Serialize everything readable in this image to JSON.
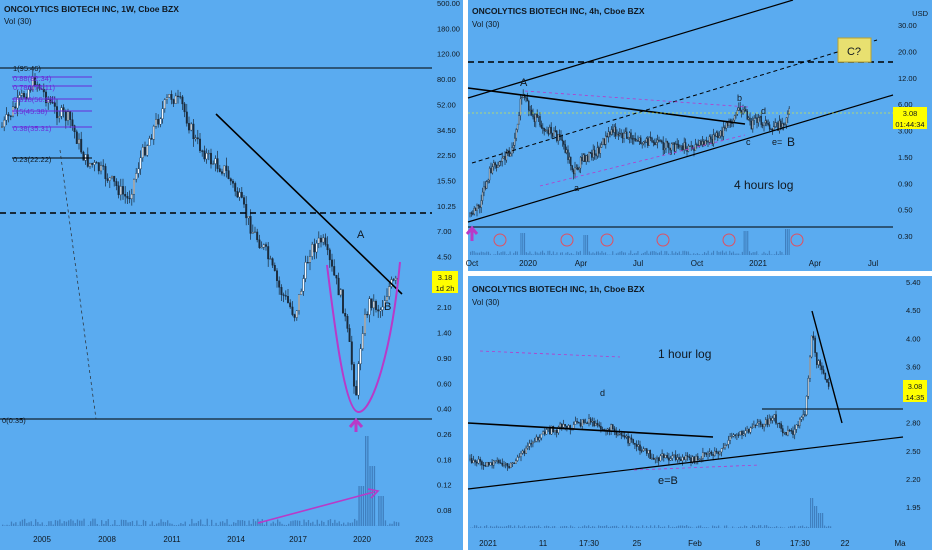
{
  "colors": {
    "panel_bg": "#5aabf0",
    "candle": "#1a2a3a",
    "trendline": "#000000",
    "magenta": "#b83ac8",
    "price_badge": "#ffff00",
    "divider": "#ffffff",
    "text": "#101820",
    "fib": "#6a2bd8"
  },
  "charts": [
    {
      "header": "ONCOLYTICS BIOTECH INC, 1W, Cboe BZX",
      "vol_label": "Vol (30)",
      "y_ticks": [
        "500.00",
        "180.00",
        "120.00",
        "80.00",
        "52.00",
        "34.50",
        "22.50",
        "15.50",
        "10.25",
        "7.00",
        "4.50",
        "3.18",
        "2.10",
        "1.40",
        "0.90",
        "0.60",
        "0.40",
        "0.26",
        "0.18",
        "0.12",
        "0.08"
      ],
      "x_ticks": [
        "2005",
        "2008",
        "2011",
        "2014",
        "2017",
        "2020",
        "2023"
      ],
      "price_badge": "3.18",
      "countdown_badge": "1d 2h",
      "fib_labels": [
        "1(95.46)",
        "0.88(82.34)",
        "0.786(74.11)",
        "0.618(56.13)",
        "0.5(45.38)",
        "0.38(35.31)",
        "0.23(22.22)",
        "0(0.35)"
      ],
      "annotations": [
        "A",
        "B"
      ]
    },
    {
      "header": "ONCOLYTICS BIOTECH INC, 4h, Cboe BZX",
      "vol_label": "Vol (30)",
      "currency": "USD",
      "y_ticks": [
        "30.00",
        "20.00",
        "12.00",
        "6.00",
        "3.00",
        "1.50",
        "0.90",
        "0.50",
        "0.30"
      ],
      "x_ticks": [
        "Oct",
        "2020",
        "Apr",
        "Jul",
        "Oct",
        "2021",
        "Apr",
        "Jul"
      ],
      "price_badge": "3.08",
      "countdown_badge": "01:44:34",
      "labels": [
        "A",
        "a",
        "b",
        "c",
        "d",
        "e=",
        "B",
        "C?",
        "4 hours  log"
      ]
    },
    {
      "header": "ONCOLYTICS BIOTECH INC, 1h, Cboe BZX",
      "vol_label": "Vol (30)",
      "y_ticks": [
        "5.40",
        "4.50",
        "4.00",
        "3.60",
        "3.18",
        "2.80",
        "2.50",
        "2.20",
        "1.95"
      ],
      "x_ticks": [
        "2021",
        "11",
        "17:30",
        "25",
        "Feb",
        "8",
        "17:30",
        "22",
        "Ma"
      ],
      "price_badge": "3.08",
      "countdown_badge": "14:35",
      "labels": [
        "d",
        "e=B",
        "1 hour log"
      ]
    }
  ]
}
